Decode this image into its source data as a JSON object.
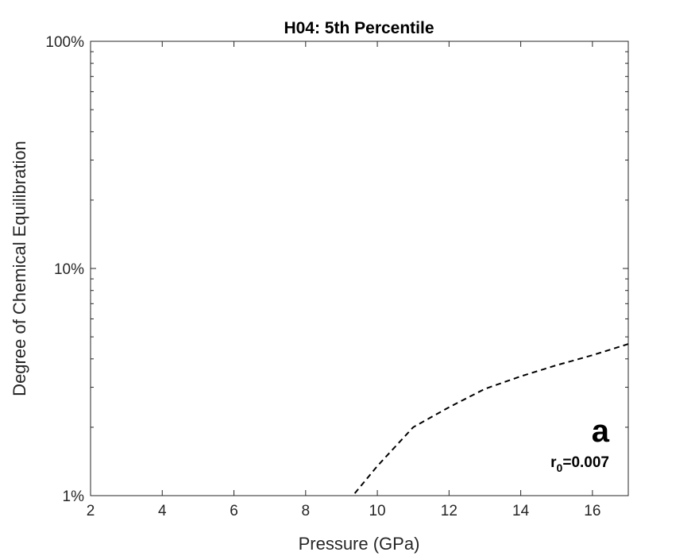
{
  "chart_data": {
    "type": "line",
    "title": "H04: 5th Percentile",
    "xlabel": "Pressure (GPa)",
    "ylabel": "Degree of Chemical Equilibration",
    "xlim": [
      2,
      17
    ],
    "ylim": [
      1,
      100
    ],
    "y_scale": "log",
    "x_ticks": [
      2,
      4,
      6,
      8,
      10,
      12,
      14,
      16
    ],
    "y_ticks": [
      {
        "value": 1,
        "label": "1%"
      },
      {
        "value": 10,
        "label": "10%"
      },
      {
        "value": 100,
        "label": "100%"
      }
    ],
    "grid": false,
    "box": true,
    "series": [
      {
        "line_style": "dashed",
        "color": "#000000",
        "x": [
          9.2,
          10.0,
          11.0,
          12.0,
          13.0,
          14.0,
          15.0,
          16.0,
          17.0
        ],
        "y": [
          0.95,
          1.35,
          2.0,
          2.45,
          2.95,
          3.35,
          3.75,
          4.15,
          4.65
        ]
      }
    ],
    "annotations": {
      "panel_letter": "a",
      "r_main": "r",
      "r_sub": "0",
      "r_value": "=0.007"
    }
  }
}
